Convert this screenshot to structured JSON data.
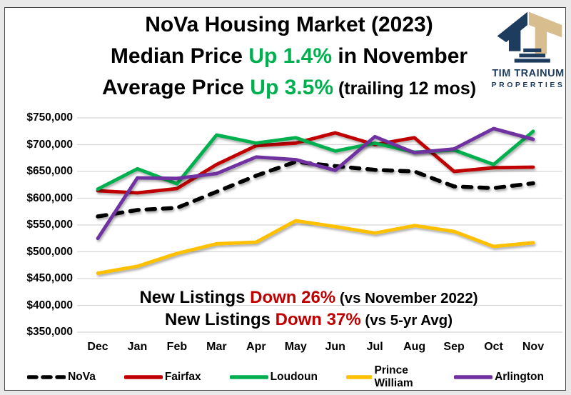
{
  "page": {
    "background": "#e9e9e9",
    "card_border": "#4a4a4a"
  },
  "title": {
    "line1": "NoVa Housing Market (2023)",
    "line2": {
      "pre": "Median Price ",
      "hl": "Up 1.4%",
      "post": " in November"
    },
    "line3": {
      "pre": "Average Price ",
      "hl": "Up 3.5%",
      "post": " (trailing 12 mos)"
    },
    "highlight_color": "#00B050"
  },
  "logo": {
    "name": "TIM TRAINUM",
    "subname": "PROPERTIES",
    "navy": "#1E3C5E",
    "tan": "#D8BE8E"
  },
  "annotations": {
    "line1": {
      "pre": "New Listings ",
      "hl": "Down 26%",
      "post": " (vs November 2022)"
    },
    "line2": {
      "pre": "New Listings ",
      "hl": "Down 37%",
      "post": " (vs 5-yr Avg)"
    },
    "highlight_color": "#C00000"
  },
  "chart_data": {
    "type": "line",
    "title": "NoVa Housing Market (2023) - Median Price by County",
    "categories": [
      "Dec",
      "Jan",
      "Feb",
      "Mar",
      "Apr",
      "May",
      "Jun",
      "Jul",
      "Aug",
      "Sep",
      "Oct",
      "Nov"
    ],
    "series": [
      {
        "name": "NoVa",
        "color": "#000000",
        "dashed": true,
        "values": [
          566000,
          578000,
          582000,
          612000,
          642000,
          668000,
          660000,
          653000,
          650000,
          622000,
          619000,
          628000
        ]
      },
      {
        "name": "Fairfax",
        "color": "#C00000",
        "dashed": false,
        "values": [
          614000,
          610000,
          618000,
          663000,
          698000,
          703000,
          722000,
          700000,
          713000,
          650000,
          657000,
          658000
        ]
      },
      {
        "name": "Loudoun",
        "color": "#00B050",
        "dashed": false,
        "values": [
          617000,
          655000,
          627000,
          718000,
          703000,
          713000,
          688000,
          703000,
          686000,
          690000,
          663000,
          725000
        ]
      },
      {
        "name": "Prince William",
        "color": "#FFC000",
        "dashed": false,
        "values": [
          460000,
          473000,
          497000,
          515000,
          518000,
          558000,
          547000,
          535000,
          549000,
          538000,
          510000,
          517000
        ]
      },
      {
        "name": "Arlington",
        "color": "#7030A0",
        "dashed": false,
        "values": [
          525000,
          638000,
          637000,
          646000,
          677000,
          672000,
          652000,
          715000,
          685000,
          692000,
          730000,
          710000
        ]
      }
    ],
    "y_ticks": [
      "$750,000",
      "$700,000",
      "$650,000",
      "$600,000",
      "$550,000",
      "$500,000",
      "$450,000",
      "$400,000",
      "$350,000"
    ],
    "y_min": 350000,
    "y_max": 750000,
    "y_step": 50000,
    "grid": true,
    "grid_color": "#d8d8d8",
    "legend_position": "bottom"
  }
}
